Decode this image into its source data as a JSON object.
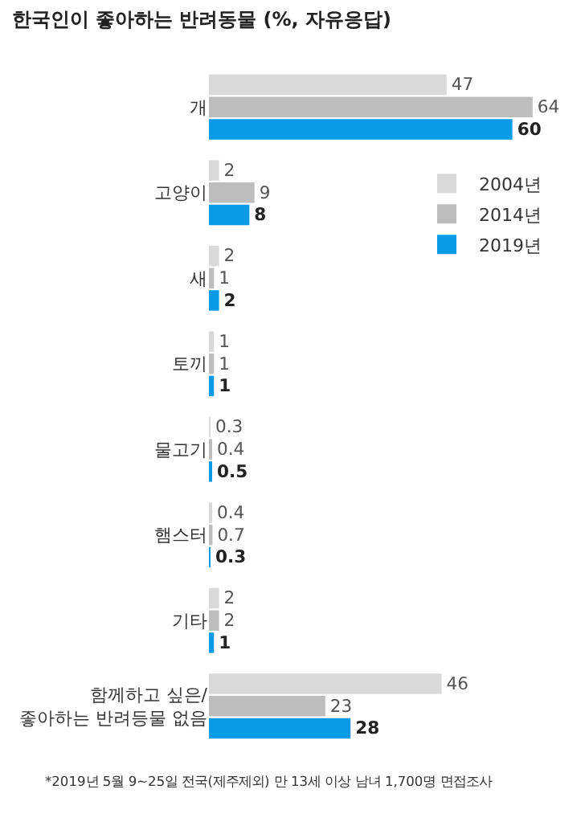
{
  "chart_data": {
    "type": "bar",
    "orientation": "horizontal",
    "title": "한국인이 좋아하는 반려동물 (%, 자유응답)",
    "categories": [
      "개",
      "고양이",
      "새",
      "토끼",
      "물고기",
      "햄스터",
      "기타",
      "함께하고 싶은/\n좋아하는 반려등물 없음"
    ],
    "series": [
      {
        "name": "2004년",
        "color": "#d9d9d9",
        "values": [
          47,
          2,
          2,
          1,
          0.3,
          0.4,
          2,
          46
        ]
      },
      {
        "name": "2014년",
        "color": "#bdbdbd",
        "values": [
          64,
          9,
          1,
          1,
          0.4,
          0.7,
          2,
          23
        ]
      },
      {
        "name": "2019년",
        "color": "#0a9ae6",
        "values": [
          60,
          8,
          2,
          1,
          0.5,
          0.3,
          1,
          28
        ]
      }
    ],
    "data_labels": true,
    "legend": "top right",
    "annotations": [
      "*2019년 5월 9~25일 전국(제주제외) 만 13세 이상 남녀 1,700명 면접조사"
    ]
  }
}
